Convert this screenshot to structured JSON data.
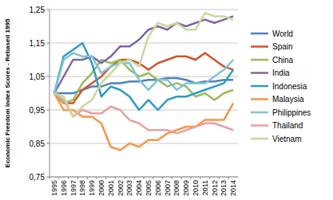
{
  "chart_data": {
    "type": "line",
    "y_label": "Economic Freedom Index Scores - Rebased 1995",
    "categories": [
      "1995",
      "1996",
      "1997",
      "1998",
      "1999",
      "2000",
      "2001",
      "2002",
      "2003",
      "2004",
      "2005",
      "2006",
      "2007",
      "2008",
      "2009",
      "2010",
      "2011",
      "2012",
      "2013",
      "2014"
    ],
    "ylim": [
      0.75,
      1.25
    ],
    "yticks": [
      {
        "value": 0.75,
        "label": "0,75"
      },
      {
        "value": 0.85,
        "label": "0,85"
      },
      {
        "value": 0.95,
        "label": "0,95"
      },
      {
        "value": 1.05,
        "label": "1,05"
      },
      {
        "value": 1.15,
        "label": "1,15"
      },
      {
        "value": 1.25,
        "label": "1,25"
      }
    ],
    "grid": true,
    "legend": "right",
    "series": [
      {
        "name": "World",
        "color": "#4f81bd",
        "values": [
          1,
          1.0,
          1.0,
          1.01,
          1.02,
          1.02,
          1.03,
          1.03,
          1.035,
          1.035,
          1.04,
          1.04,
          1.045,
          1.045,
          1.04,
          1.03,
          1.035,
          1.035,
          1.04,
          1.04
        ]
      },
      {
        "name": "Spain",
        "color": "#d0532a",
        "values": [
          1,
          0.97,
          0.97,
          1.01,
          1.03,
          1.05,
          1.08,
          1.1,
          1.1,
          1.09,
          1.07,
          1.09,
          1.1,
          1.11,
          1.11,
          1.1,
          1.12,
          1.1,
          1.08,
          1.07
        ]
      },
      {
        "name": "China",
        "color": "#9bbb59",
        "values": [
          1,
          0.97,
          0.98,
          1.03,
          1.06,
          1.1,
          1.09,
          1.1,
          1.07,
          1.05,
          1.06,
          1.04,
          1.02,
          1.03,
          1.02,
          0.99,
          1.0,
          0.98,
          1.0,
          1.01
        ]
      },
      {
        "name": "India",
        "color": "#8064a2",
        "values": [
          1,
          1.05,
          1.1,
          1.1,
          1.11,
          1.09,
          1.11,
          1.14,
          1.14,
          1.16,
          1.19,
          1.2,
          1.19,
          1.21,
          1.2,
          1.21,
          1.22,
          1.21,
          1.22,
          1.23
        ]
      },
      {
        "name": "Indonesia",
        "color": "#2c9bc8",
        "values": [
          1,
          1.11,
          1.13,
          1.15,
          1.09,
          0.99,
          1.02,
          1.01,
          0.99,
          0.95,
          0.98,
          0.95,
          0.98,
          0.99,
          0.99,
          1.0,
          1.01,
          1.02,
          1.03,
          1.07
        ]
      },
      {
        "name": "Malaysia",
        "color": "#f79646",
        "values": [
          1,
          0.95,
          0.95,
          0.93,
          0.93,
          0.91,
          0.84,
          0.83,
          0.85,
          0.84,
          0.86,
          0.86,
          0.88,
          0.89,
          0.9,
          0.9,
          0.92,
          0.92,
          0.92,
          0.97
        ]
      },
      {
        "name": "Philippines",
        "color": "#7dc4d8",
        "values": [
          1,
          1.1,
          1.12,
          1.11,
          1.11,
          1.06,
          1.08,
          1.09,
          1.09,
          1.04,
          1.01,
          1.04,
          1.04,
          1.01,
          1.03,
          1.03,
          1.03,
          1.05,
          1.07,
          1.1
        ]
      },
      {
        "name": "Thailand",
        "color": "#e6a0a0",
        "values": [
          1,
          0.98,
          0.93,
          0.95,
          0.94,
          0.94,
          0.96,
          0.95,
          0.92,
          0.91,
          0.89,
          0.89,
          0.89,
          0.88,
          0.89,
          0.9,
          0.91,
          0.91,
          0.9,
          0.89
        ]
      },
      {
        "name": "Vietnam",
        "color": "#c8d89a",
        "values": [
          1,
          0.99,
          0.93,
          0.96,
          0.98,
          1.03,
          1.06,
          1.09,
          1.1,
          1.08,
          1.17,
          1.21,
          1.2,
          1.21,
          1.19,
          1.19,
          1.24,
          1.23,
          1.23,
          1.22
        ]
      }
    ]
  }
}
